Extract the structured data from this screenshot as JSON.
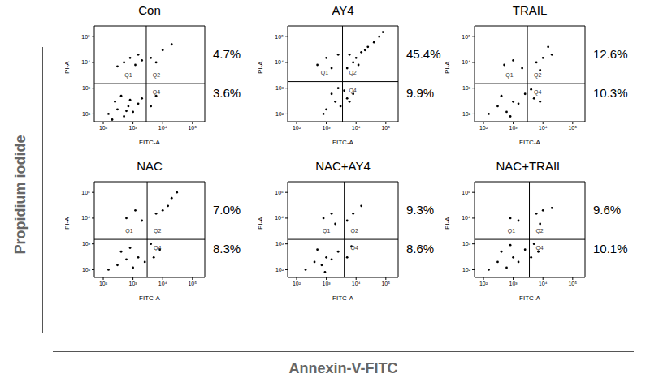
{
  "figure_labels": {
    "x": "Annexin-V-FITC",
    "y": "Propidium iodide"
  },
  "chart_data": [
    {
      "type": "scatter",
      "title": "Con",
      "xlabel": "FITC-A",
      "ylabel": "PI-A",
      "log": true,
      "grid": false,
      "color": "#000000",
      "marker": "dot",
      "xlim": [
        50,
        260000
      ],
      "ylim": [
        50,
        260000
      ],
      "xticks": [
        {
          "value": 100,
          "label": "10²"
        },
        {
          "value": 1000,
          "label": "10³"
        },
        {
          "value": 10000,
          "label": "10⁴"
        },
        {
          "value": 100000,
          "label": "10⁵"
        }
      ],
      "yticks": [
        {
          "value": 100,
          "label": "10²"
        },
        {
          "value": 1000,
          "label": "10³"
        },
        {
          "value": 10000,
          "label": "10⁴"
        },
        {
          "value": 100000,
          "label": "10⁵"
        }
      ],
      "gates": {
        "x": 2800,
        "y": 1500
      },
      "quadrant_labels": [
        "Q1",
        "Q2",
        "Q4"
      ],
      "annotations": [
        {
          "text": "4.7%",
          "quadrant": "Q2"
        },
        {
          "text": "3.6%",
          "quadrant": "Q4"
        }
      ],
      "x": [
        150,
        300,
        500,
        700,
        250,
        1000,
        400,
        800,
        1500,
        200,
        600,
        2000,
        4000,
        6000,
        500,
        800,
        1200,
        300,
        2000,
        1500,
        4000,
        6000,
        10000,
        20000
      ],
      "y": [
        100,
        150,
        80,
        200,
        300,
        120,
        500,
        350,
        250,
        60,
        130,
        400,
        200,
        500,
        10000,
        15000,
        8000,
        7000,
        12000,
        20000,
        15000,
        10000,
        30000,
        50000
      ]
    },
    {
      "type": "scatter",
      "title": "AY4",
      "xlabel": "FITC-A",
      "ylabel": "PI-A",
      "log": true,
      "grid": false,
      "color": "#000000",
      "marker": "dot",
      "xlim": [
        50,
        260000
      ],
      "ylim": [
        50,
        260000
      ],
      "xticks": [
        {
          "value": 100,
          "label": "10²"
        },
        {
          "value": 1000,
          "label": "10³"
        },
        {
          "value": 10000,
          "label": "10⁴"
        },
        {
          "value": 100000,
          "label": "10⁵"
        }
      ],
      "yticks": [
        {
          "value": 100,
          "label": "10²"
        },
        {
          "value": 1000,
          "label": "10³"
        },
        {
          "value": 10000,
          "label": "10⁴"
        },
        {
          "value": 100000,
          "label": "10⁵"
        }
      ],
      "gates": {
        "x": 3500,
        "y": 1800
      },
      "quadrant_labels": [
        "Q1",
        "Q2",
        "Q4"
      ],
      "annotations": [
        {
          "text": "45.4%",
          "quadrant": "Q2"
        },
        {
          "text": "9.9%",
          "quadrant": "Q4"
        }
      ],
      "x": [
        1000,
        2000,
        3000,
        5000,
        1500,
        4000,
        800,
        2500,
        6000,
        8000,
        500,
        1000,
        1500,
        2500,
        5000,
        8000,
        10000,
        15000,
        25000,
        40000,
        60000,
        6000,
        12000,
        20000,
        80000
      ],
      "y": [
        150,
        300,
        200,
        400,
        600,
        800,
        100,
        1000,
        300,
        600,
        8000,
        15000,
        6000,
        20000,
        6000,
        10000,
        15000,
        25000,
        40000,
        60000,
        100000,
        20000,
        8000,
        30000,
        150000
      ]
    },
    {
      "type": "scatter",
      "title": "TRAIL",
      "xlabel": "FITC-A",
      "ylabel": "PI-A",
      "log": true,
      "grid": false,
      "color": "#000000",
      "marker": "dot",
      "xlim": [
        50,
        260000
      ],
      "ylim": [
        50,
        260000
      ],
      "xticks": [
        {
          "value": 100,
          "label": "10²"
        },
        {
          "value": 1000,
          "label": "10³"
        },
        {
          "value": 10000,
          "label": "10⁴"
        },
        {
          "value": 100000,
          "label": "10⁵"
        }
      ],
      "yticks": [
        {
          "value": 100,
          "label": "10²"
        },
        {
          "value": 1000,
          "label": "10³"
        },
        {
          "value": 10000,
          "label": "10⁴"
        },
        {
          "value": 100000,
          "label": "10⁵"
        }
      ],
      "gates": {
        "x": 3000,
        "y": 1500
      },
      "quadrant_labels": [
        "Q1",
        "Q2",
        "Q4"
      ],
      "annotations": [
        {
          "text": "12.6%",
          "quadrant": "Q2"
        },
        {
          "text": "10.3%",
          "quadrant": "Q4"
        }
      ],
      "x": [
        150,
        300,
        600,
        1000,
        400,
        1500,
        2500,
        800,
        5000,
        8000,
        4000,
        500,
        1000,
        2000,
        6000,
        10000,
        20000,
        15000,
        8000
      ],
      "y": [
        100,
        200,
        120,
        300,
        500,
        250,
        600,
        80,
        400,
        300,
        900,
        8000,
        12000,
        6000,
        10000,
        15000,
        20000,
        40000,
        5000
      ]
    },
    {
      "type": "scatter",
      "title": "NAC",
      "xlabel": "FITC-A",
      "ylabel": "PI-A",
      "log": true,
      "grid": false,
      "color": "#000000",
      "marker": "dot",
      "xlim": [
        50,
        260000
      ],
      "ylim": [
        50,
        260000
      ],
      "xticks": [
        {
          "value": 100,
          "label": "10²"
        },
        {
          "value": 1000,
          "label": "10³"
        },
        {
          "value": 10000,
          "label": "10⁴"
        },
        {
          "value": 100000,
          "label": "10⁵"
        }
      ],
      "yticks": [
        {
          "value": 100,
          "label": "10²"
        },
        {
          "value": 1000,
          "label": "10³"
        },
        {
          "value": 10000,
          "label": "10⁴"
        },
        {
          "value": 100000,
          "label": "10⁵"
        }
      ],
      "gates": {
        "x": 3000,
        "y": 1500
      },
      "quadrant_labels": [
        "Q1",
        "Q2",
        "Q4"
      ],
      "annotations": [
        {
          "text": "7.0%",
          "quadrant": "Q2"
        },
        {
          "text": "8.3%",
          "quadrant": "Q4"
        }
      ],
      "x": [
        150,
        300,
        600,
        1000,
        400,
        1500,
        800,
        2500,
        5000,
        8000,
        4000,
        600,
        1200,
        2000,
        6000,
        10000,
        15000,
        20000,
        30000
      ],
      "y": [
        100,
        150,
        250,
        120,
        500,
        300,
        700,
        200,
        300,
        600,
        1000,
        10000,
        20000,
        8000,
        15000,
        20000,
        30000,
        60000,
        100000
      ]
    },
    {
      "type": "scatter",
      "title": "NAC+AY4",
      "xlabel": "FITC-A",
      "ylabel": "PI-A",
      "log": true,
      "grid": false,
      "color": "#000000",
      "marker": "dot",
      "xlim": [
        50,
        260000
      ],
      "ylim": [
        50,
        260000
      ],
      "xticks": [
        {
          "value": 100,
          "label": "10²"
        },
        {
          "value": 1000,
          "label": "10³"
        },
        {
          "value": 10000,
          "label": "10⁴"
        },
        {
          "value": 100000,
          "label": "10⁵"
        }
      ],
      "yticks": [
        {
          "value": 100,
          "label": "10²"
        },
        {
          "value": 1000,
          "label": "10³"
        },
        {
          "value": 10000,
          "label": "10⁴"
        },
        {
          "value": 100000,
          "label": "10⁵"
        }
      ],
      "gates": {
        "x": 4000,
        "y": 1500
      },
      "quadrant_labels": [
        "Q1",
        "Q2",
        "Q4"
      ],
      "annotations": [
        {
          "text": "9.3%",
          "quadrant": "Q2"
        },
        {
          "text": "8.6%",
          "quadrant": "Q4"
        }
      ],
      "x": [
        200,
        400,
        700,
        1000,
        500,
        1500,
        900,
        2500,
        5000,
        7000,
        800,
        1500,
        2000,
        5000,
        8000,
        15000
      ],
      "y": [
        100,
        200,
        150,
        300,
        600,
        250,
        80,
        500,
        300,
        800,
        10000,
        15000,
        6000,
        8000,
        15000,
        30000
      ]
    },
    {
      "type": "scatter",
      "title": "NAC+TRAIL",
      "xlabel": "FITC-A",
      "ylabel": "PI-A",
      "log": true,
      "grid": false,
      "color": "#000000",
      "marker": "dot",
      "xlim": [
        50,
        260000
      ],
      "ylim": [
        50,
        260000
      ],
      "xticks": [
        {
          "value": 100,
          "label": "10²"
        },
        {
          "value": 1000,
          "label": "10³"
        },
        {
          "value": 10000,
          "label": "10⁴"
        },
        {
          "value": 100000,
          "label": "10⁵"
        }
      ],
      "yticks": [
        {
          "value": 100,
          "label": "10²"
        },
        {
          "value": 1000,
          "label": "10³"
        },
        {
          "value": 10000,
          "label": "10⁴"
        },
        {
          "value": 100000,
          "label": "10⁵"
        }
      ],
      "gates": {
        "x": 3500,
        "y": 1500
      },
      "quadrant_labels": [
        "Q1",
        "Q2",
        "Q4"
      ],
      "annotations": [
        {
          "text": "9.6%",
          "quadrant": "Q2"
        },
        {
          "text": "10.1%",
          "quadrant": "Q4"
        }
      ],
      "x": [
        150,
        300,
        600,
        1000,
        400,
        1500,
        2500,
        800,
        4000,
        7000,
        5000,
        800,
        1500,
        6000,
        10000,
        20000,
        8000
      ],
      "y": [
        100,
        200,
        120,
        300,
        500,
        200,
        600,
        900,
        300,
        500,
        1000,
        10000,
        8000,
        15000,
        20000,
        25000,
        6000
      ]
    }
  ]
}
